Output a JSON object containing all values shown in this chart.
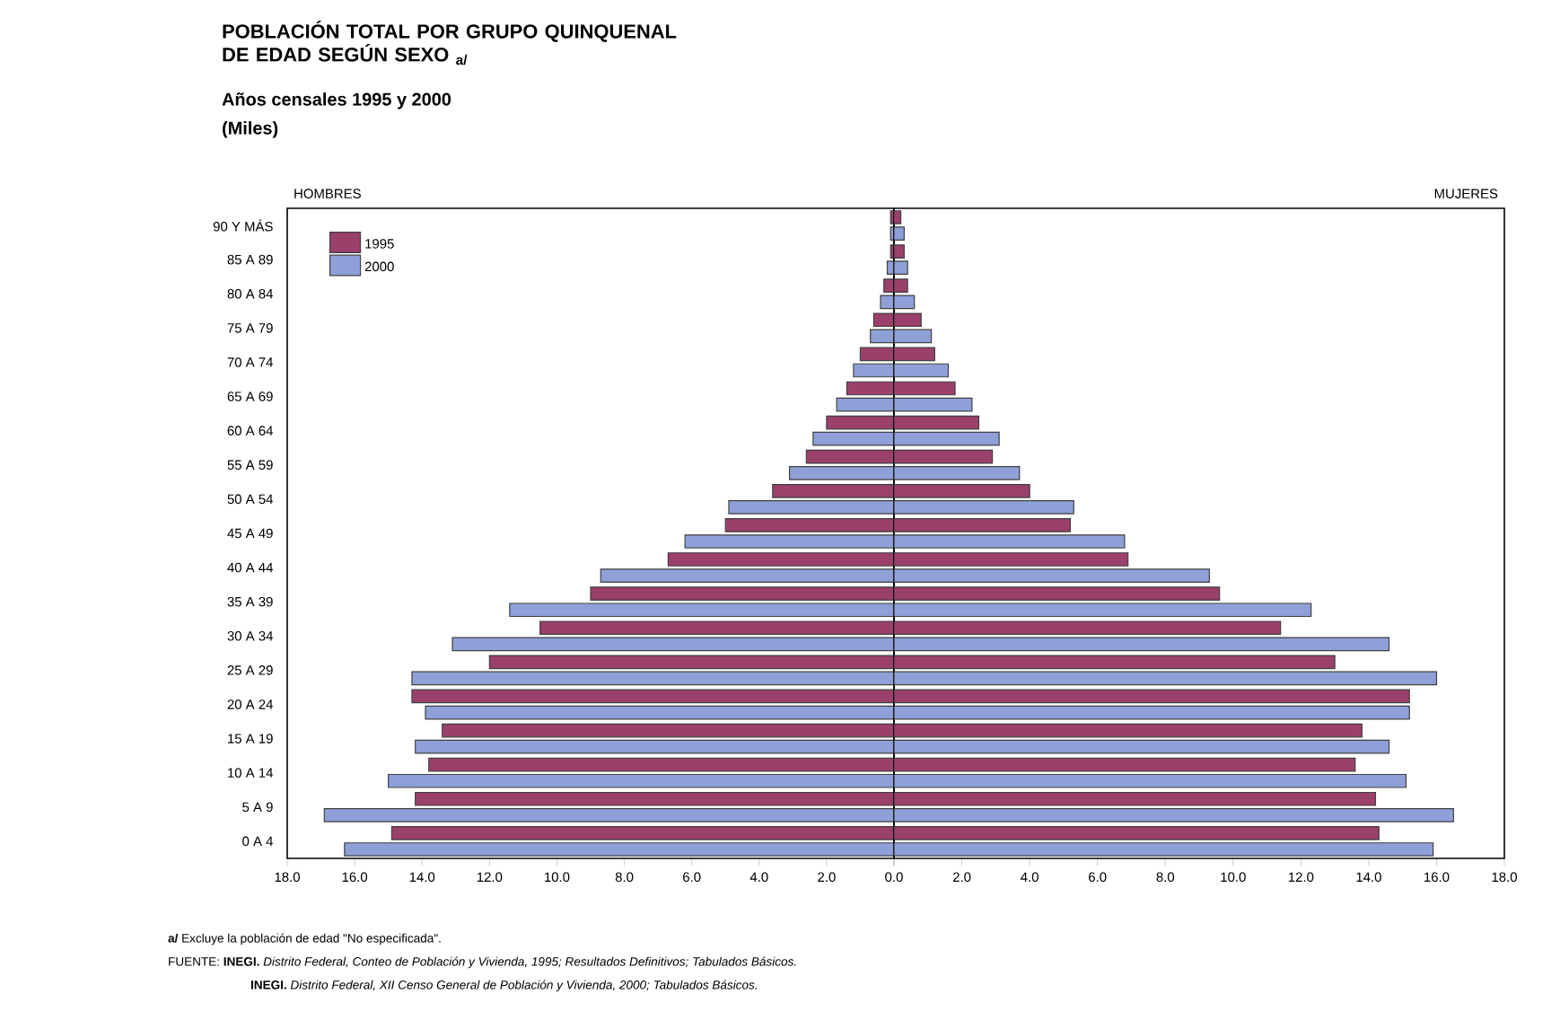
{
  "chart_data": [
    {
      "type": "bar",
      "orientation": "horizontal",
      "title": "POBLACIÓN TOTAL POR GRUPO QUINQUENAL DE EDAD SEGÚN SEXO $_{a/}$",
      "subtitle": "Años censales 1995 y 2000",
      "categories": [
        "90 Y MÁS",
        "85 A 89",
        "80 A 84",
        "75 A 79",
        "70 A 74",
        "65 A 69",
        "60 A 64",
        "55 A 59",
        "50 A 54",
        "45 A 49",
        "40 A 44",
        "35 A 39",
        "30 A 34",
        "25 A 29",
        "20 A 24",
        "15 A 19",
        "10 A 14",
        "5 A 9",
        "0 A 4"
      ],
      "series": [
        {
          "name": "1995",
          "color": "#9b3f6b",
          "values": [
            0.1,
            0.1,
            0.3,
            0.6,
            1.0,
            1.4,
            2.0,
            2.6,
            3.6,
            5.0,
            6.7,
            9.0,
            10.5,
            12.0,
            14.3,
            13.4,
            13.8,
            14.2,
            14.9
          ]
        },
        {
          "name": "2000",
          "color": "#8fa0d8",
          "values": [
            0.1,
            0.2,
            0.4,
            0.7,
            1.2,
            1.7,
            2.4,
            3.1,
            4.9,
            6.2,
            8.7,
            11.4,
            13.1,
            14.3,
            13.9,
            14.2,
            15.0,
            16.9,
            16.3
          ]
        }
      ],
      "xlim": [
        18,
        0
      ],
      "xticks": [
        {
          "value": 18,
          "label": "18.0"
        },
        {
          "value": 16,
          "label": "16.0"
        },
        {
          "value": 14,
          "label": "14.0"
        },
        {
          "value": 12,
          "label": "12.0"
        },
        {
          "value": 10,
          "label": "10.0"
        },
        {
          "value": 8,
          "label": "8.0"
        },
        {
          "value": 6,
          "label": "6.0"
        },
        {
          "value": 4,
          "label": "4.0"
        },
        {
          "value": 2,
          "label": "2.0"
        },
        {
          "value": 0,
          "label": "0.0"
        }
      ],
      "legend": "top left",
      "grid": false,
      "annotations": [
        "HOMBRES",
        "(Miles)",
        "**a/** Excluye la población de edad \"No especificada\".",
        "FUENTE: **INEGI.** *Distrito Federal, Conteo de Población y Vivienda, 1995; Resultados Definitivos; Tabulados Básicos.*",
        "**INEGI.** *Distrito Federal, XII Censo General de Población y Vivienda, 2000; Tabulados Básicos.*"
      ]
    },
    {
      "type": "bar",
      "orientation": "horizontal",
      "series": [
        {
          "color": "#9b3f6b",
          "values": [
            0.2,
            0.3,
            0.4,
            0.8,
            1.2,
            1.8,
            2.5,
            2.9,
            4.0,
            5.2,
            6.9,
            9.6,
            11.4,
            13.0,
            15.2,
            13.8,
            13.6,
            14.2,
            14.3
          ]
        },
        {
          "color": "#8fa0d8",
          "values": [
            0.3,
            0.4,
            0.6,
            1.1,
            1.6,
            2.3,
            3.1,
            3.7,
            5.3,
            6.8,
            9.3,
            12.3,
            14.6,
            16.0,
            15.2,
            14.6,
            15.1,
            16.5,
            15.9
          ]
        }
      ],
      "xlim": [
        0,
        18
      ],
      "xticks": [
        {
          "value": 0,
          "label": null
        },
        {
          "value": 2,
          "label": "2.0"
        },
        {
          "value": 4,
          "label": "4.0"
        },
        {
          "value": 6,
          "label": "6.0"
        },
        {
          "value": 8,
          "label": "8.0"
        },
        {
          "value": 10,
          "label": "10.0"
        },
        {
          "value": 12,
          "label": "12.0"
        },
        {
          "value": 14,
          "label": "14.0"
        },
        {
          "value": 16,
          "label": "16.0"
        },
        {
          "value": 18,
          "label": "18.0"
        }
      ],
      "tick_labels": "x",
      "grid": false,
      "annotations": [
        "MUJERES"
      ]
    }
  ]
}
